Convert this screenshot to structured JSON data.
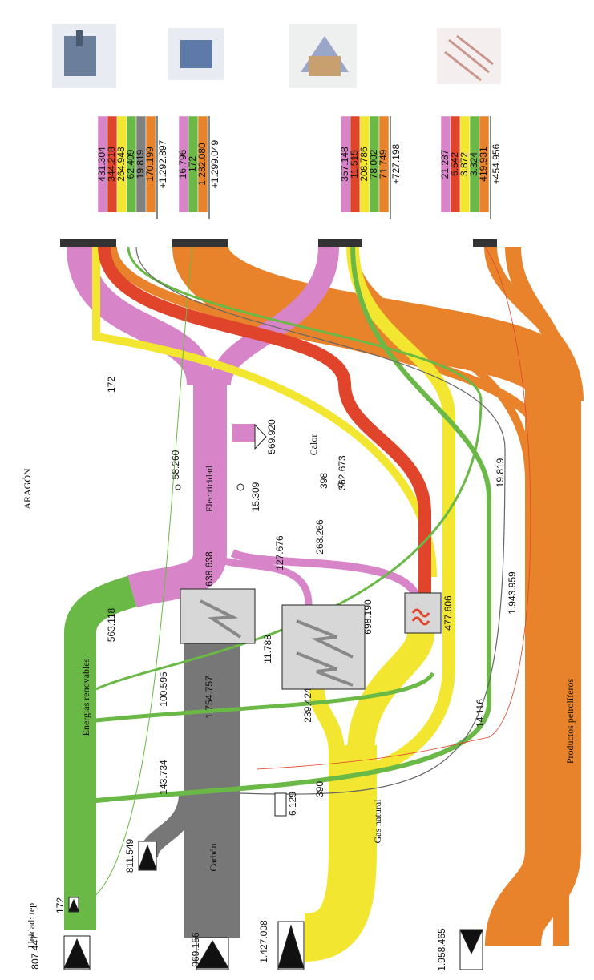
{
  "title": "ARAGÓN",
  "unit": "Unidad: tep",
  "labels": [
    "Energías renovables",
    "Carbón",
    "Gas natural",
    "Productos petrolíferos",
    "Electricidad",
    "Calor"
  ],
  "source_values": [
    "172",
    "807.447",
    "811.549",
    "969.156",
    "1.427.008",
    "1.958.465",
    "6.129"
  ],
  "flow_values": [
    "172",
    "563.118",
    "100.595",
    "143.734",
    "58.260",
    "638.638",
    "1.754.757",
    "15.309",
    "569.920",
    "127.676",
    "11.788",
    "239.424",
    "268.266",
    "398",
    "362.673",
    "698.190",
    "477.606",
    "390",
    "14.116",
    "19.819",
    "1.943.959"
  ],
  "sectors": [
    {
      "values": [
        "431.304",
        "344.218",
        "264.948",
        "62.409",
        "19.819",
        "170.199"
      ],
      "total": "+1.292.897",
      "colors": [
        "#d884c8",
        "#e0442a",
        "#f2e631",
        "#6ab845",
        "#808080",
        "#e8832c"
      ]
    },
    {
      "values": [
        "16.796",
        "172",
        "1.282.080"
      ],
      "total": "+1.299.049",
      "colors": [
        "#d884c8",
        "#6ab845",
        "#e8832c"
      ]
    },
    {
      "values": [
        "357.148",
        "11.515",
        "208.786",
        "78.002",
        "71.749"
      ],
      "total": "+727.198",
      "colors": [
        "#d884c8",
        "#e0442a",
        "#f2e631",
        "#6ab845",
        "#e8832c"
      ]
    },
    {
      "values": [
        "21.287",
        "6.542",
        "3.872",
        "3.324",
        "419.931"
      ],
      "total": "+454.956",
      "colors": [
        "#d884c8",
        "#e0442a",
        "#f2e631",
        "#6ab845",
        "#e8832c"
      ]
    }
  ]
}
